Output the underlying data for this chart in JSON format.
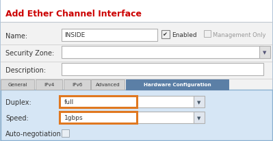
{
  "title": "Add Ether Channel Interface",
  "title_color": "#cc0000",
  "outer_bg": "#e8e8e8",
  "dialog_bg": "#f2f2f2",
  "border_color": "#b0c4d8",
  "tab_active_bg": "#5b7fa6",
  "tab_active_fg": "#ffffff",
  "tab_inactive_bg": "#d4d4d4",
  "tab_inactive_fg": "#333333",
  "lower_bg": "#d6e6f5",
  "lower_border": "#8ab0d0",
  "highlight_color": "#e07820",
  "field_border": "#b0b0b0",
  "text_color": "#333333",
  "light_text": "#999999",
  "white": "#ffffff",
  "tab_names": [
    "General",
    "IPv4",
    "IPv6",
    "Advanced",
    "Hardware Configuration"
  ],
  "tab_active_index": 4,
  "enabled_label": "Enabled",
  "mgmt_label": "Management Only",
  "auto_neg_label": "Auto-negotiation:"
}
